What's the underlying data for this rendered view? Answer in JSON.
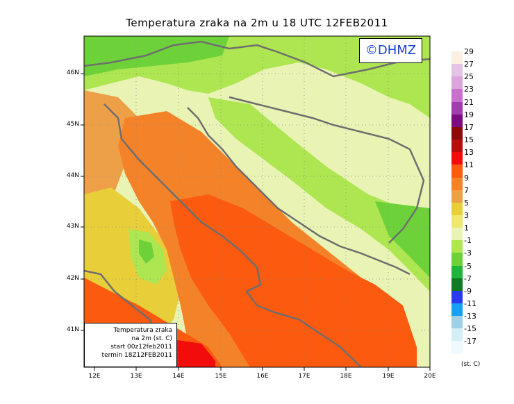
{
  "title": "Temperatura zraka na 2m u 18 UTC 12FEB2011",
  "logo": "©DHMZ",
  "info_box": {
    "line1": "Temperatura zraka",
    "line2": "na 2m (st. C)",
    "line3": "start 00z12feb2011",
    "line4": "termin 18Z12FEB2011"
  },
  "y_ticks": [
    "46N",
    "45N",
    "44N",
    "43N",
    "42N",
    "41N"
  ],
  "x_ticks": [
    "12E",
    "13E",
    "14E",
    "15E",
    "16E",
    "17E",
    "18E",
    "19E",
    "20E"
  ],
  "legend": {
    "labels": [
      "29",
      "27",
      "25",
      "23",
      "21",
      "19",
      "17",
      "15",
      "13",
      "11",
      "9",
      "7",
      "5",
      "3",
      "1",
      "-1",
      "-3",
      "-5",
      "-7",
      "-9",
      "-11",
      "-13",
      "-15",
      "-17"
    ],
    "colors": [
      "#fbefe1",
      "#e2c5e4",
      "#dca6dc",
      "#c86fd0",
      "#a23cb0",
      "#7d0c82",
      "#8b0a0a",
      "#b80d0d",
      "#f20c0c",
      "#fb5a0f",
      "#f48228",
      "#eea048",
      "#e8cf3a",
      "#ede870",
      "#e9f3b4",
      "#ade650",
      "#6dd23a",
      "#22b33a",
      "#0e7a22",
      "#2a3af0",
      "#18a0f0",
      "#9fd0e8",
      "#d4eef5",
      "#eefafd"
    ],
    "unit": "(st. C)"
  }
}
